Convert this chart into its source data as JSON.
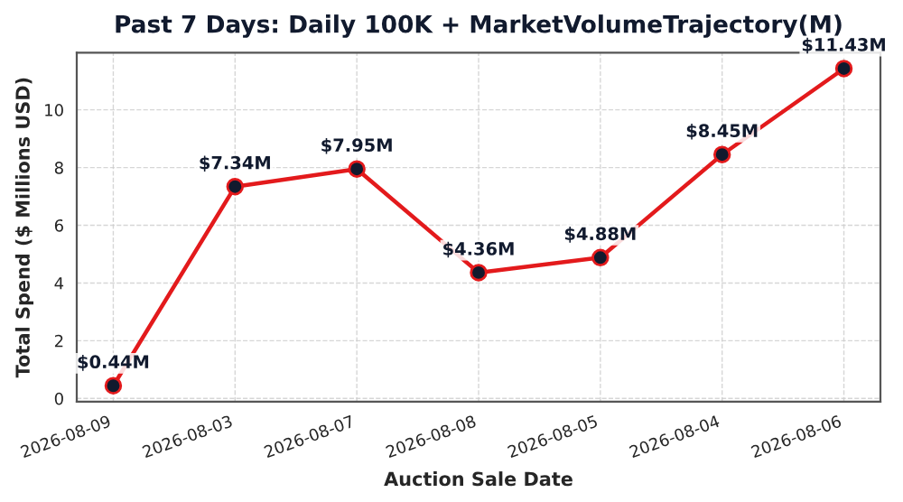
{
  "chart_data": {
    "type": "line",
    "title": "Past 7 Days: Daily 100K + MarketVolumeTrajectory(M)",
    "xlabel": "Auction Sale Date",
    "ylabel": "Total Spend ($ Millions USD)",
    "categories": [
      "2026-08-09",
      "2026-08-03",
      "2026-08-07",
      "2026-08-08",
      "2026-08-05",
      "2026-08-04",
      "2026-08-06"
    ],
    "series": [
      {
        "color": "#e31a1c",
        "values": [
          0.44,
          7.34,
          7.95,
          4.36,
          4.88,
          8.45,
          11.43
        ],
        "value_labels": [
          "$0.44M",
          "$7.34M",
          "$7.95M",
          "$4.36M",
          "$4.88M",
          "$8.45M",
          "$11.43M"
        ]
      }
    ],
    "ylim": [
      -0.11,
      11.98
    ],
    "yticks": [
      0,
      2,
      4,
      6,
      8,
      10
    ],
    "grid": true,
    "marker": "circle",
    "line_style": "solid"
  }
}
